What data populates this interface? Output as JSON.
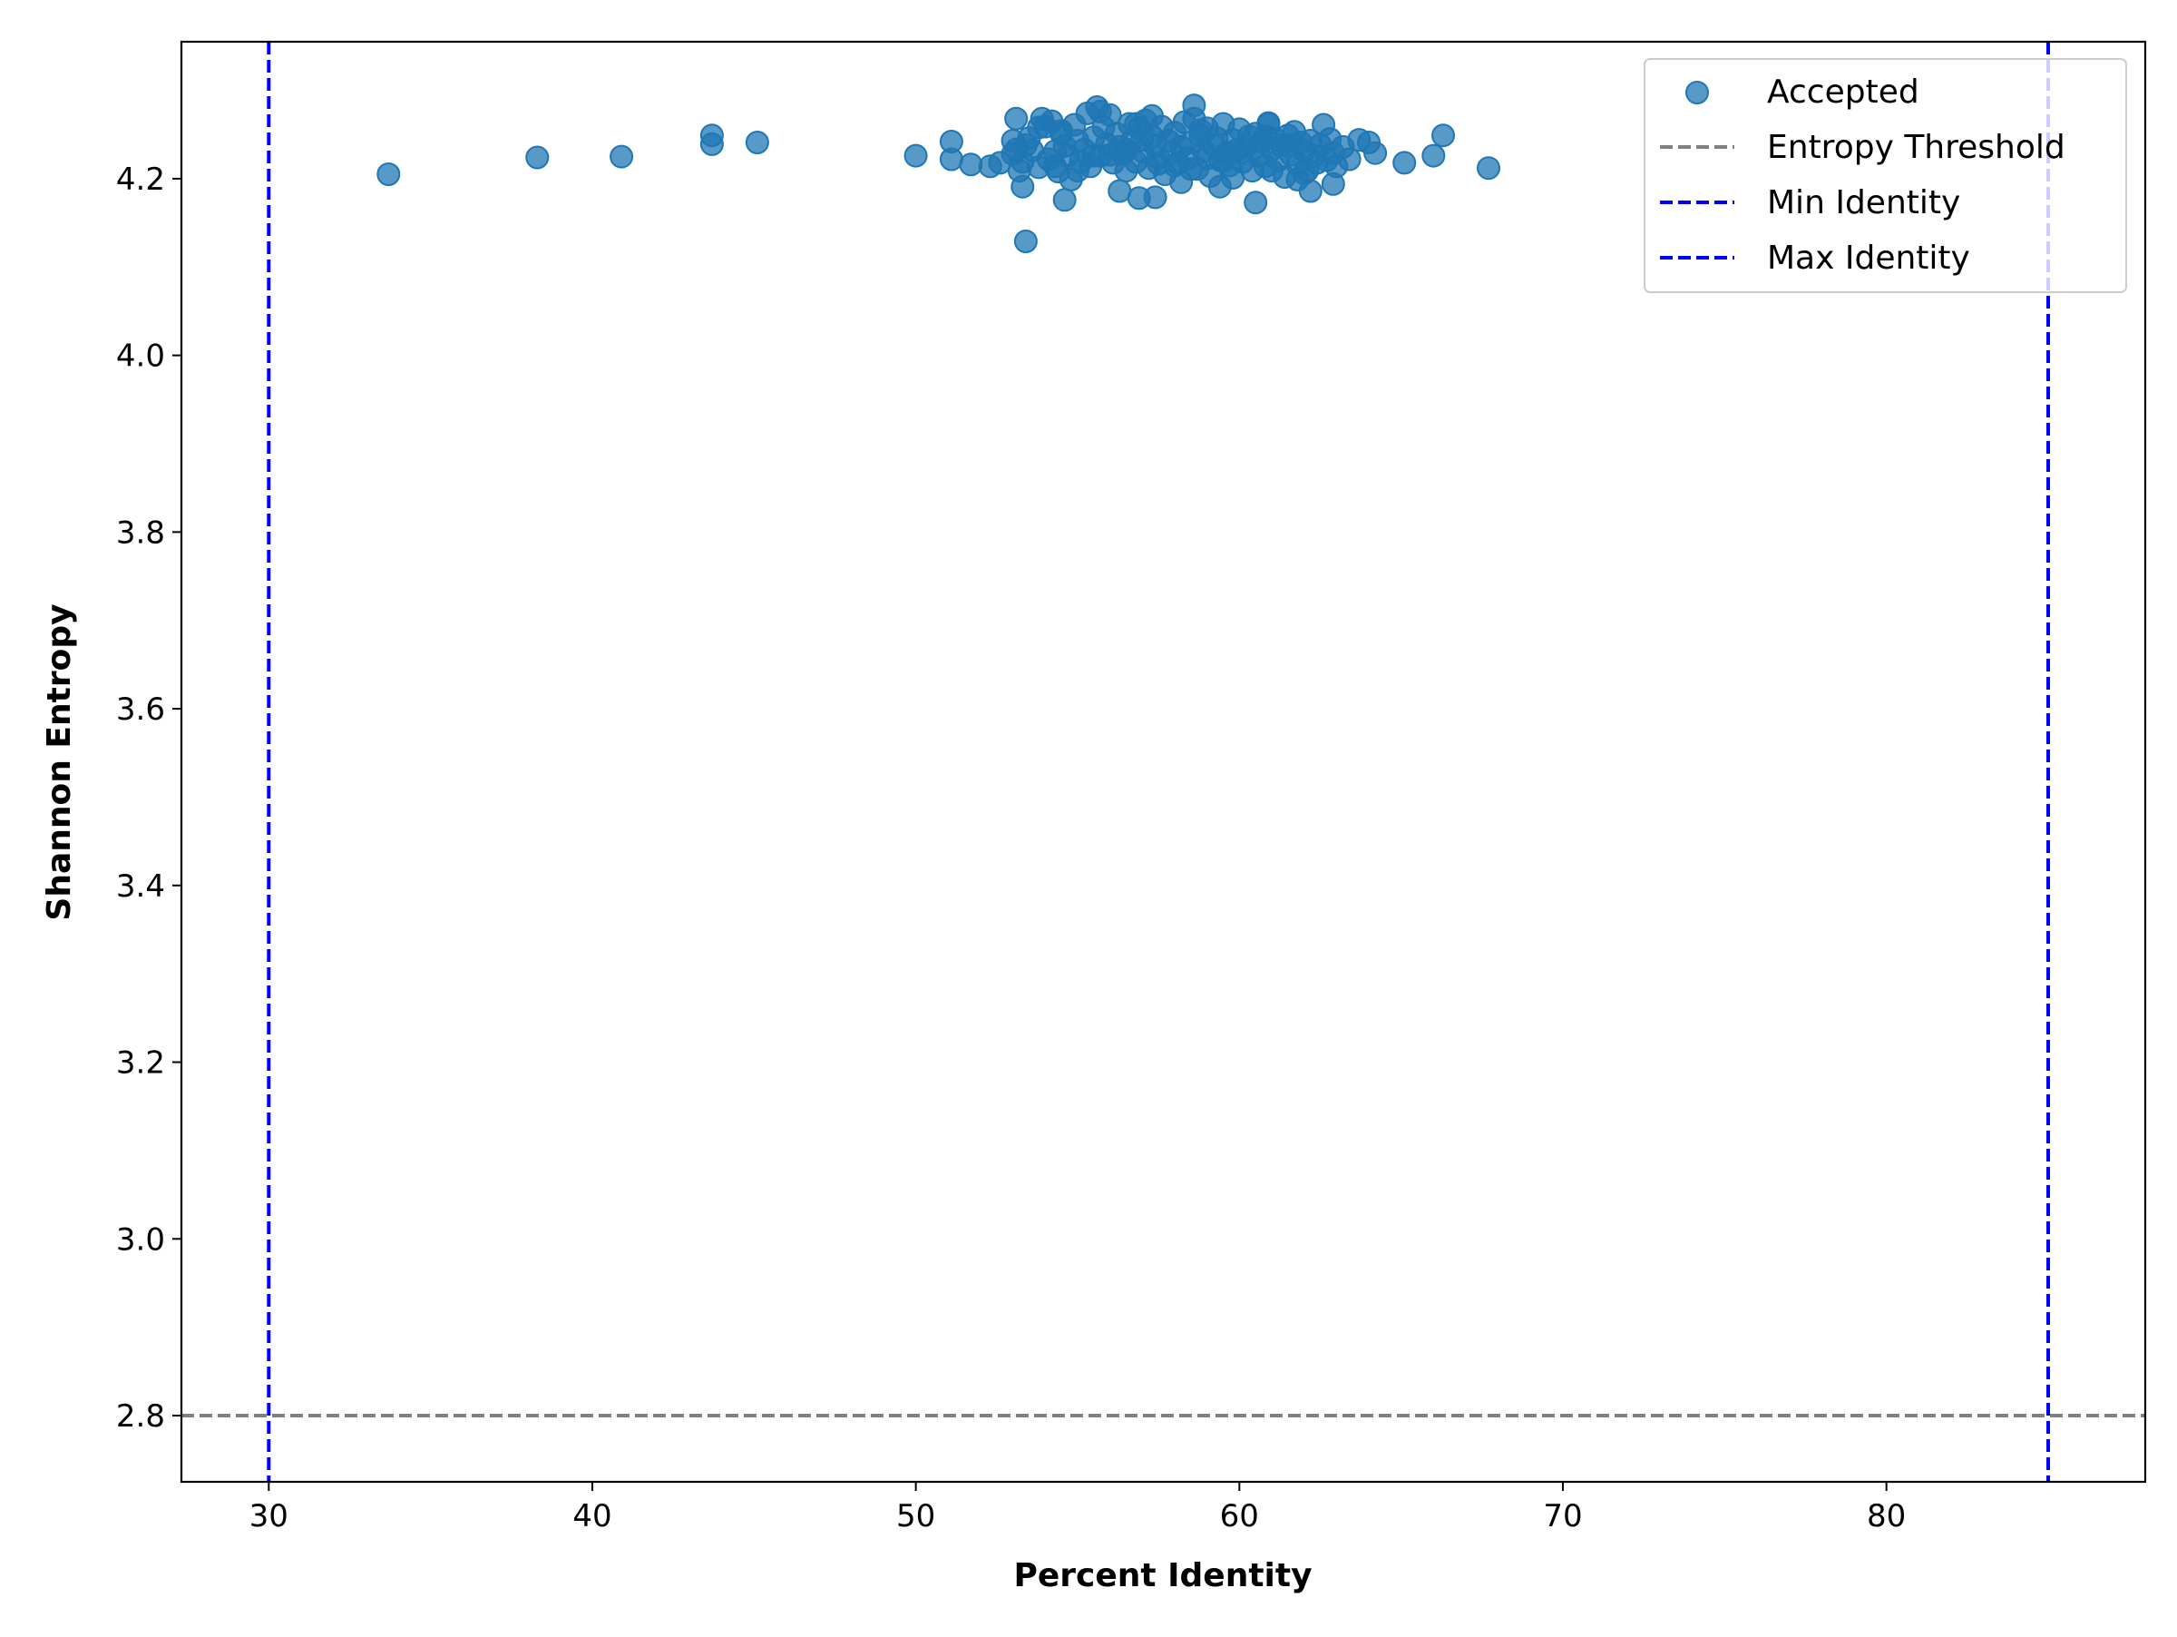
{
  "chart_data": {
    "type": "scatter",
    "title": "",
    "xlabel": "Percent Identity",
    "ylabel": "Shannon Entropy",
    "xlim": [
      27.3,
      88.0
    ],
    "ylim": [
      2.725,
      4.355
    ],
    "xticks": [
      30,
      40,
      50,
      60,
      70,
      80
    ],
    "yticks": [
      2.8,
      3.0,
      3.2,
      3.4,
      3.6,
      3.8,
      4.0,
      4.2
    ],
    "grid": false,
    "legend_position": "top-right",
    "series": [
      {
        "name": "Accepted",
        "color": "#1f77b4",
        "marker": "circle",
        "x": [
          33.7,
          38.3,
          40.9,
          43.7,
          43.7,
          45.1,
          50.0,
          51.1,
          51.1,
          51.7,
          52.3,
          52.6,
          53.0,
          53.0,
          53.1,
          53.2,
          53.3,
          53.4,
          53.5,
          53.6,
          53.8,
          53.9,
          54.0,
          54.1,
          54.2,
          54.3,
          54.4,
          54.5,
          54.6,
          54.7,
          54.8,
          54.9,
          55.0,
          55.1,
          55.2,
          55.3,
          55.4,
          55.5,
          55.6,
          55.7,
          55.8,
          55.9,
          56.0,
          56.1,
          56.2,
          56.3,
          56.4,
          56.5,
          56.6,
          56.7,
          56.8,
          56.9,
          57.0,
          57.1,
          57.2,
          57.3,
          57.4,
          57.5,
          57.6,
          57.7,
          57.8,
          57.9,
          58.0,
          58.1,
          58.2,
          58.3,
          58.4,
          58.5,
          58.6,
          58.7,
          58.8,
          58.9,
          59.0,
          59.1,
          59.2,
          59.3,
          59.4,
          59.5,
          59.6,
          59.7,
          59.8,
          59.9,
          60.0,
          60.1,
          60.2,
          60.3,
          60.4,
          60.5,
          60.6,
          60.7,
          60.8,
          60.9,
          61.0,
          61.1,
          61.2,
          61.3,
          61.4,
          61.5,
          61.6,
          61.7,
          61.8,
          61.9,
          62.0,
          62.1,
          62.2,
          62.3,
          62.4,
          62.5,
          62.6,
          62.7,
          62.8,
          62.9,
          63.0,
          63.2,
          63.4,
          63.7,
          64.0,
          64.2,
          65.1,
          66.0,
          66.3,
          67.7,
          53.4,
          53.3,
          54.6,
          56.3,
          56.9,
          57.4,
          59.4,
          60.5,
          62.2,
          62.9,
          55.7,
          57.3,
          58.6,
          60.9,
          53.1,
          54.3,
          55.0,
          56.0,
          57.0,
          58.0,
          59.0,
          60.0,
          61.0,
          62.0,
          55.5,
          56.5,
          57.5,
          58.5,
          59.5,
          60.5,
          61.5,
          54.5,
          56.8,
          58.8,
          60.8,
          53.8,
          58.2,
          59.8,
          61.8
        ],
        "y": [
          4.205,
          4.224,
          4.225,
          4.249,
          4.239,
          4.241,
          4.226,
          4.242,
          4.222,
          4.216,
          4.214,
          4.218,
          4.243,
          4.228,
          4.233,
          4.209,
          4.219,
          4.238,
          4.246,
          4.232,
          4.213,
          4.268,
          4.259,
          4.222,
          4.265,
          4.231,
          4.208,
          4.251,
          4.237,
          4.226,
          4.199,
          4.261,
          4.243,
          4.219,
          4.233,
          4.274,
          4.214,
          4.247,
          4.281,
          4.226,
          4.258,
          4.239,
          4.272,
          4.218,
          4.251,
          4.236,
          4.228,
          4.209,
          4.262,
          4.244,
          4.219,
          4.257,
          4.231,
          4.266,
          4.212,
          4.248,
          4.237,
          4.224,
          4.259,
          4.205,
          4.243,
          4.229,
          4.252,
          4.218,
          4.236,
          4.264,
          4.223,
          4.241,
          4.283,
          4.211,
          4.249,
          4.231,
          4.257,
          4.203,
          4.238,
          4.246,
          4.221,
          4.262,
          4.229,
          4.215,
          4.244,
          4.232,
          4.256,
          4.219,
          4.237,
          4.248,
          4.209,
          4.251,
          4.226,
          4.242,
          4.214,
          4.263,
          4.233,
          4.245,
          4.221,
          4.238,
          4.202,
          4.249,
          4.227,
          4.253,
          4.216,
          4.241,
          4.232,
          4.209,
          4.243,
          4.226,
          4.218,
          4.238,
          4.261,
          4.221,
          4.245,
          4.229,
          4.214,
          4.236,
          4.222,
          4.244,
          4.241,
          4.229,
          4.218,
          4.226,
          4.249,
          4.212,
          4.129,
          4.191,
          4.176,
          4.186,
          4.178,
          4.179,
          4.191,
          4.173,
          4.186,
          4.194,
          4.276,
          4.271,
          4.268,
          4.262,
          4.268,
          4.214,
          4.209,
          4.227,
          4.244,
          4.215,
          4.223,
          4.229,
          4.209,
          4.206,
          4.226,
          4.233,
          4.217,
          4.211,
          4.221,
          4.235,
          4.238,
          4.254,
          4.262,
          4.255,
          4.248,
          4.258,
          4.196,
          4.201,
          4.199
        ]
      },
      {
        "name": "Entropy Threshold",
        "color": "#808080",
        "style": "dashed",
        "orientation": "horizontal",
        "y": 2.8
      },
      {
        "name": "Min Identity",
        "color": "#0000ff",
        "style": "dashed",
        "orientation": "vertical",
        "x": 30
      },
      {
        "name": "Max Identity",
        "color": "#0000ff",
        "style": "dashed",
        "orientation": "vertical",
        "x": 85
      }
    ]
  }
}
